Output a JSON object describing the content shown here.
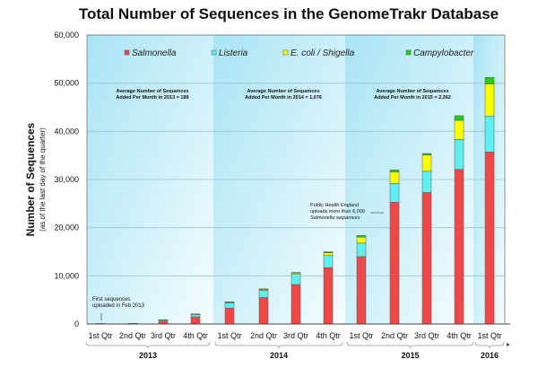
{
  "chart_data": {
    "type": "bar",
    "stacked": true,
    "title": "Total Number of Sequences in the GenomeTrakr Database",
    "ylabel": "Number of Sequences",
    "ylabel_sub": "(as of the last day of the quarter)",
    "ylim": [
      0,
      60000
    ],
    "yticks": [
      "0",
      "10,000",
      "20,000",
      "30,000",
      "40,000",
      "50,000",
      "60,000"
    ],
    "grid": true,
    "legend_position": "top",
    "categories": [
      "1st Qtr",
      "2nd Qtr",
      "3rd Qtr",
      "4th Qtr",
      "1st Qtr",
      "2nd Qtr",
      "3rd Qtr",
      "4th Qtr",
      "1st Qtr",
      "2nd Qtr",
      "3rd Qtr",
      "4th Qtr",
      "1st Qtr"
    ],
    "groups": [
      {
        "label": "2013",
        "count": 4
      },
      {
        "label": "2014",
        "count": 4
      },
      {
        "label": "2015",
        "count": 4
      },
      {
        "label": "2016",
        "count": 1
      }
    ],
    "series": [
      {
        "name": "Salmonella",
        "color": "#f04848",
        "values": [
          80,
          120,
          600,
          1500,
          3300,
          5500,
          8200,
          11700,
          14000,
          25300,
          27300,
          32100,
          35700
        ]
      },
      {
        "name": "Listeria",
        "color": "#5ef0f0",
        "values": [
          15,
          20,
          250,
          500,
          1100,
          1500,
          2100,
          2500,
          2800,
          3900,
          4400,
          6200,
          7500
        ]
      },
      {
        "name": "E. coli / Shigella",
        "color": "#ffff00",
        "values": [
          0,
          5,
          50,
          80,
          150,
          200,
          300,
          600,
          1250,
          2350,
          3400,
          4000,
          6650
        ]
      },
      {
        "name": "Campylobacter",
        "color": "#22cc22",
        "values": [
          0,
          0,
          0,
          20,
          50,
          100,
          100,
          200,
          350,
          450,
          300,
          950,
          1350
        ]
      }
    ],
    "annotations": [
      {
        "text": [
          "Average Number of Sequences",
          "Added Per Month in 2013 = 189"
        ]
      },
      {
        "text": [
          "Average Number of Sequences",
          "Added Per Month in 2014 = 1,076"
        ]
      },
      {
        "text": [
          "Average Number of Sequences",
          "Added Per Month in 2015 = 2,362"
        ]
      },
      {
        "text": [
          "First sequences",
          "uploaded in Feb 2013"
        ]
      },
      {
        "text": [
          "Public Health England",
          "uploads more than 6,000",
          "Salmonella sequences"
        ]
      }
    ]
  }
}
